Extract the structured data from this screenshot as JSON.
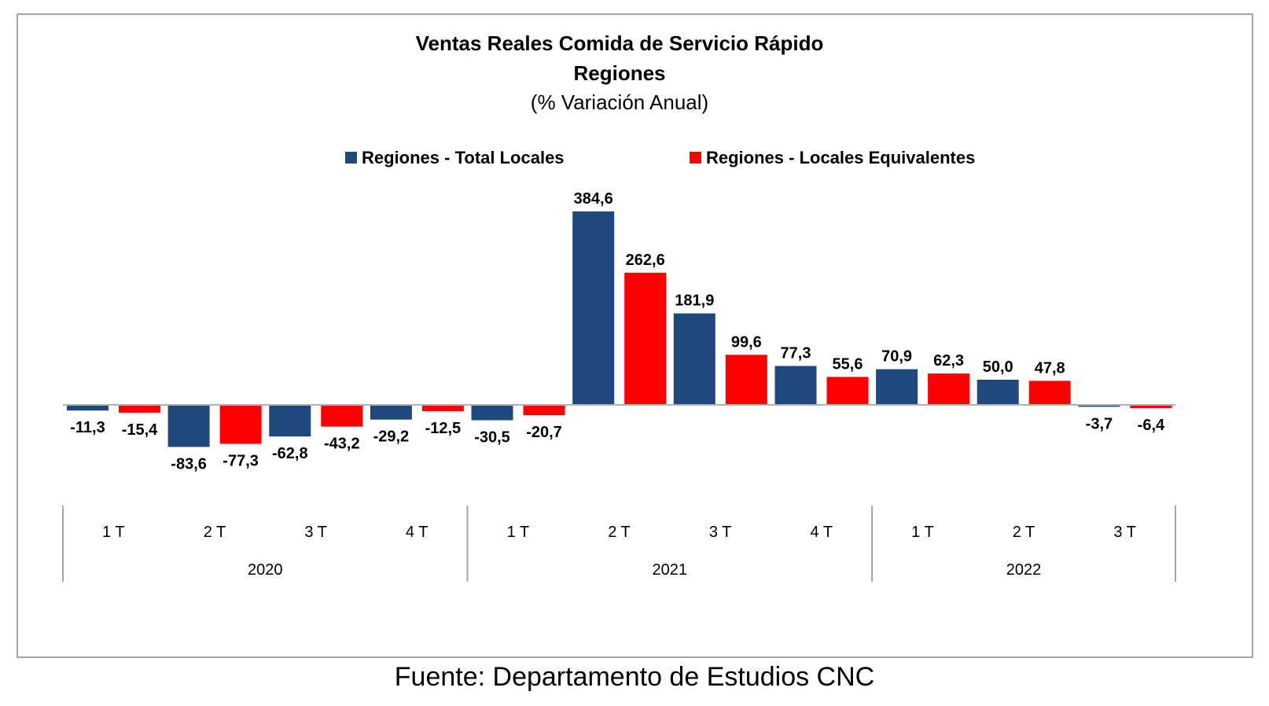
{
  "chart_data": {
    "type": "bar",
    "title": "Ventas Reales Comida de Servicio Rápido",
    "subtitle": "Regiones",
    "unit_label": "(% Variación Anual)",
    "categories": [
      "1 T",
      "2 T",
      "3 T",
      "4 T",
      "1 T",
      "2 T",
      "3 T",
      "4 T",
      "1 T",
      "2 T",
      "3 T"
    ],
    "groups": [
      {
        "label": "2020",
        "count": 4
      },
      {
        "label": "2021",
        "count": 4
      },
      {
        "label": "2022",
        "count": 3
      }
    ],
    "series": [
      {
        "name": "Regiones - Total Locales",
        "color": "#1f497d",
        "values": [
          -11.3,
          -83.6,
          -62.8,
          -29.2,
          -30.5,
          384.6,
          181.9,
          77.3,
          70.9,
          50.0,
          -3.7
        ],
        "labels": [
          "-11,3",
          "-83,6",
          "-62,8",
          "-29,2",
          "-30,5",
          "384,6",
          "181,9",
          "77,3",
          "70,9",
          "50,0",
          "-3,7"
        ]
      },
      {
        "name": "Regiones - Locales Equivalentes",
        "color": "#ff0000",
        "values": [
          -15.4,
          -77.3,
          -43.2,
          -12.5,
          -20.7,
          262.6,
          99.6,
          55.6,
          62.3,
          47.8,
          -6.4
        ],
        "labels": [
          "-15,4",
          "-77,3",
          "-43,2",
          "-12,5",
          "-20,7",
          "262,6",
          "99,6",
          "55,6",
          "62,3",
          "47,8",
          "-6,4"
        ]
      }
    ],
    "legend_position": "top-center",
    "grid": false,
    "ylim": [
      -150,
      420
    ]
  },
  "source": "Fuente: Departamento de Estudios CNC"
}
